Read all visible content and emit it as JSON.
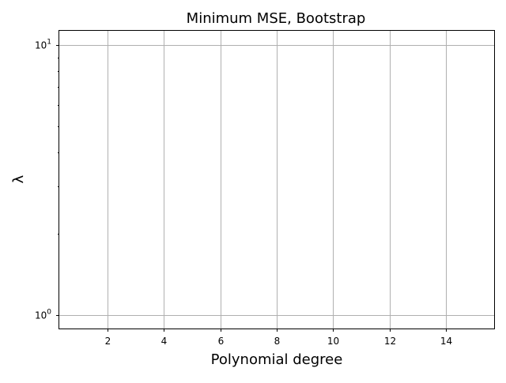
{
  "chart_data": {
    "type": "line",
    "title": "Minimum MSE, Bootstrap",
    "xlabel": "Polynomial degree",
    "ylabel": "λ",
    "xscale": "linear",
    "yscale": "log",
    "xlim": [
      0.3,
      15.7
    ],
    "ylim": [
      0.89,
      11.3
    ],
    "x_ticks": [
      {
        "value": 2,
        "label": "2"
      },
      {
        "value": 4,
        "label": "4"
      },
      {
        "value": 6,
        "label": "6"
      },
      {
        "value": 8,
        "label": "8"
      },
      {
        "value": 10,
        "label": "10"
      },
      {
        "value": 12,
        "label": "12"
      },
      {
        "value": 14,
        "label": "14"
      }
    ],
    "y_ticks": [
      {
        "value": 1,
        "base": "10",
        "exp": "0"
      },
      {
        "value": 10,
        "base": "10",
        "exp": "1"
      }
    ],
    "y_minor_ticks": [
      2,
      3,
      4,
      5,
      6,
      7,
      8,
      9
    ],
    "grid": true,
    "series": [],
    "grid_color": "#b0b0b0"
  }
}
